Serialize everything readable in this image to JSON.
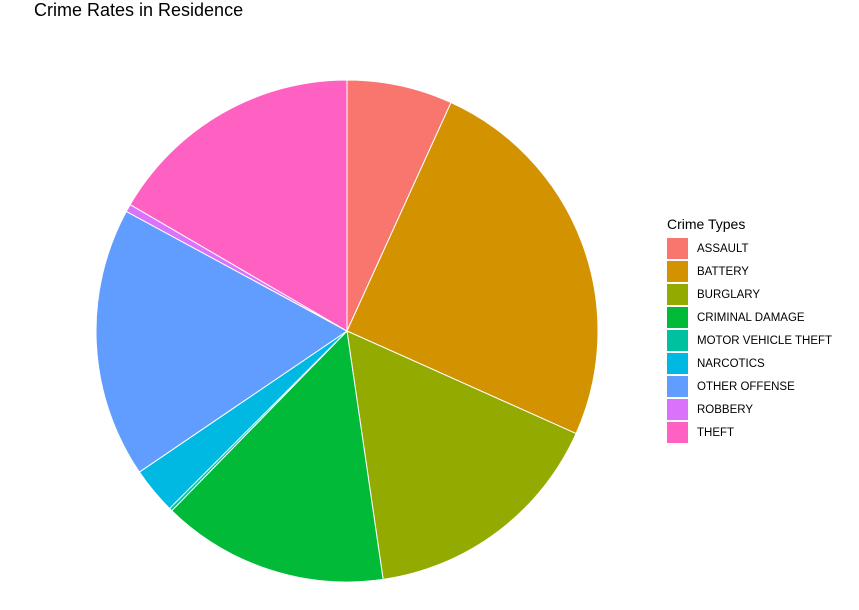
{
  "chart_data": {
    "type": "pie",
    "title": "Crime Rates in Residence",
    "legend_title": "Crime Types",
    "legend_position": "right",
    "categories": [
      "ASSAULT",
      "BATTERY",
      "BURGLARY",
      "CRIMINAL DAMAGE",
      "MOTOR VEHICLE THEFT",
      "NARCOTICS",
      "OTHER OFFENSE",
      "ROBBERY",
      "THEFT"
    ],
    "values": [
      6.8,
      24.9,
      16.0,
      14.6,
      0.2,
      3.0,
      17.4,
      0.5,
      16.6
    ],
    "colors": [
      "#F8766D",
      "#D39200",
      "#93AA00",
      "#00BA38",
      "#00C19F",
      "#00B9E3",
      "#619CFF",
      "#DB72FB",
      "#FF61C3"
    ]
  }
}
